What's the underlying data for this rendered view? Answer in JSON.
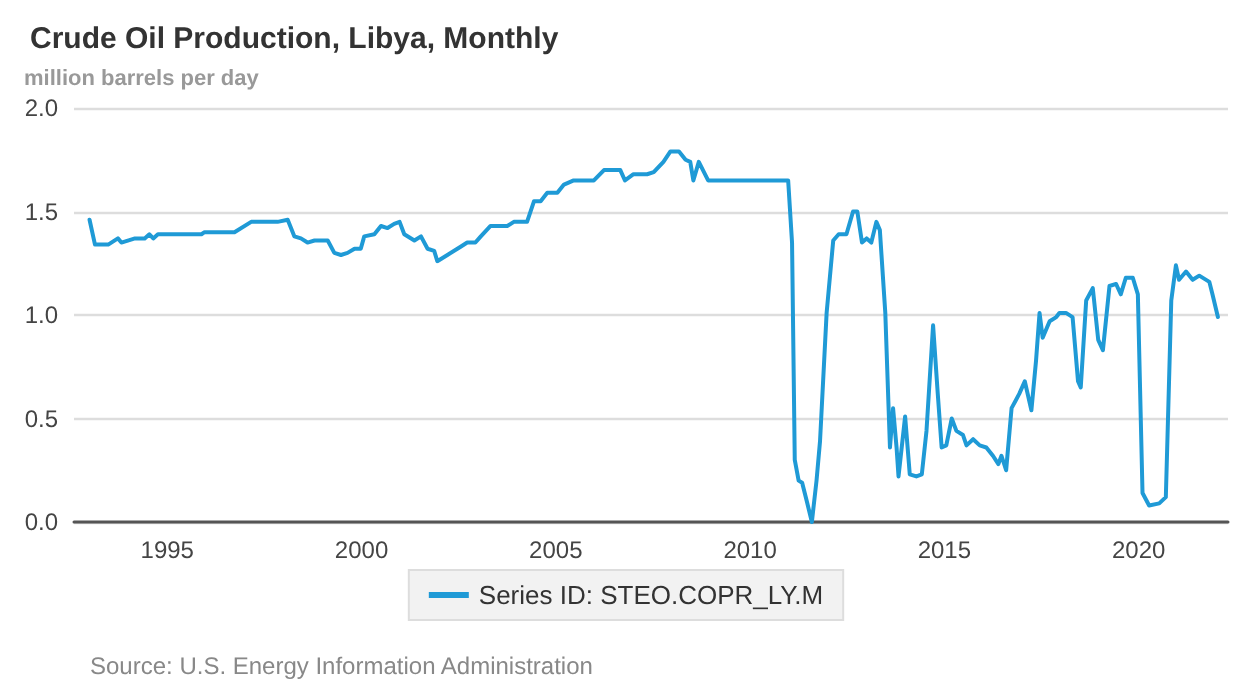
{
  "chart_data": {
    "type": "line",
    "title": "Crude Oil Production, Libya, Monthly",
    "ylabel": "million barrels per day",
    "annotations": [
      "Source: U.S. Energy Information Administration"
    ],
    "x": [
      1993.0,
      1993.14,
      1993.48,
      1993.73,
      1993.82,
      1994.17,
      1994.42,
      1994.54,
      1994.64,
      1994.76,
      1995.88,
      1995.96,
      1996.73,
      1997.16,
      1997.84,
      1998.1,
      1998.27,
      1998.44,
      1998.61,
      1998.79,
      1999.13,
      1999.3,
      1999.47,
      1999.64,
      1999.82,
      1999.98,
      2000.07,
      2000.33,
      2000.5,
      2000.67,
      2000.84,
      2000.98,
      2001.1,
      2001.36,
      2001.53,
      2001.7,
      2001.87,
      2001.95,
      2002.21,
      2002.55,
      2002.72,
      2002.93,
      2003.07,
      2003.32,
      2003.75,
      2003.92,
      2004.26,
      2004.44,
      2004.61,
      2004.78,
      2005.04,
      2005.21,
      2005.46,
      2005.98,
      2006.24,
      2006.66,
      2006.78,
      2007.0,
      2007.35,
      2007.52,
      2007.77,
      2007.95,
      2008.17,
      2008.34,
      2008.46,
      2008.54,
      2008.68,
      2008.92,
      2010.98,
      2011.08,
      2011.15,
      2011.25,
      2011.34,
      2011.46,
      2011.59,
      2011.71,
      2011.8,
      2011.97,
      2012.14,
      2012.28,
      2012.48,
      2012.65,
      2012.76,
      2012.88,
      2013.0,
      2013.12,
      2013.25,
      2013.34,
      2013.48,
      2013.6,
      2013.68,
      2013.77,
      2013.82,
      2013.99,
      2014.11,
      2014.28,
      2014.42,
      2014.54,
      2014.71,
      2014.83,
      2014.93,
      2015.05,
      2015.19,
      2015.31,
      2015.48,
      2015.57,
      2015.74,
      2015.91,
      2016.08,
      2016.25,
      2016.39,
      2016.47,
      2016.59,
      2016.73,
      2016.93,
      2017.07,
      2017.24,
      2017.36,
      2017.45,
      2017.53,
      2017.71,
      2017.88,
      2017.96,
      2018.13,
      2018.3,
      2018.44,
      2018.51,
      2018.65,
      2018.82,
      2018.96,
      2019.08,
      2019.25,
      2019.42,
      2019.54,
      2019.67,
      2019.85,
      2019.98,
      2020.1,
      2020.27,
      2020.53,
      2020.7,
      2020.84,
      2020.96,
      2021.04,
      2021.22,
      2021.39,
      2021.56,
      2021.82,
      2021.9,
      2022.04
    ],
    "series": [
      {
        "name": "Series ID: STEO.COPR_LY.M",
        "color": "#1f9ad6",
        "values": [
          1.46,
          1.34,
          1.34,
          1.37,
          1.35,
          1.37,
          1.37,
          1.39,
          1.37,
          1.39,
          1.39,
          1.4,
          1.4,
          1.45,
          1.45,
          1.46,
          1.38,
          1.37,
          1.35,
          1.36,
          1.36,
          1.3,
          1.29,
          1.3,
          1.32,
          1.32,
          1.38,
          1.39,
          1.43,
          1.42,
          1.44,
          1.45,
          1.39,
          1.36,
          1.38,
          1.32,
          1.31,
          1.26,
          1.29,
          1.33,
          1.35,
          1.35,
          1.38,
          1.43,
          1.43,
          1.45,
          1.45,
          1.55,
          1.55,
          1.59,
          1.59,
          1.63,
          1.65,
          1.65,
          1.7,
          1.7,
          1.65,
          1.68,
          1.68,
          1.69,
          1.74,
          1.79,
          1.79,
          1.75,
          1.74,
          1.65,
          1.74,
          1.65,
          1.65,
          1.35,
          0.3,
          0.2,
          0.19,
          0.1,
          0.0,
          0.2,
          0.39,
          1.01,
          1.36,
          1.39,
          1.39,
          1.5,
          1.5,
          1.35,
          1.37,
          1.35,
          1.45,
          1.41,
          1.01,
          0.36,
          0.55,
          0.36,
          0.22,
          0.51,
          0.23,
          0.22,
          0.23,
          0.44,
          0.95,
          0.62,
          0.36,
          0.37,
          0.5,
          0.44,
          0.42,
          0.37,
          0.4,
          0.37,
          0.36,
          0.32,
          0.28,
          0.32,
          0.25,
          0.55,
          0.62,
          0.68,
          0.54,
          0.78,
          1.01,
          0.89,
          0.97,
          0.99,
          1.01,
          1.01,
          0.99,
          0.68,
          0.65,
          1.07,
          1.13,
          0.88,
          0.83,
          1.14,
          1.15,
          1.1,
          1.18,
          1.18,
          1.1,
          0.14,
          0.08,
          0.09,
          0.12,
          1.07,
          1.24,
          1.17,
          1.21,
          1.17,
          1.19,
          1.16,
          1.1,
          0.99
        ]
      }
    ],
    "xlim": [
      1992.6,
      2022.3
    ],
    "xticks": [
      1995,
      2000,
      2005,
      2010,
      2015,
      2020
    ],
    "ylim": [
      0,
      2
    ],
    "yticks": [
      {
        "value": 0,
        "label": "0.0"
      },
      0.5,
      {
        "value": 1,
        "label": "1.0"
      },
      1.5,
      {
        "value": 2,
        "label": "2.0"
      }
    ],
    "grid": "y",
    "legend": "bottom",
    "marker": "none",
    "line_style": "solid"
  }
}
